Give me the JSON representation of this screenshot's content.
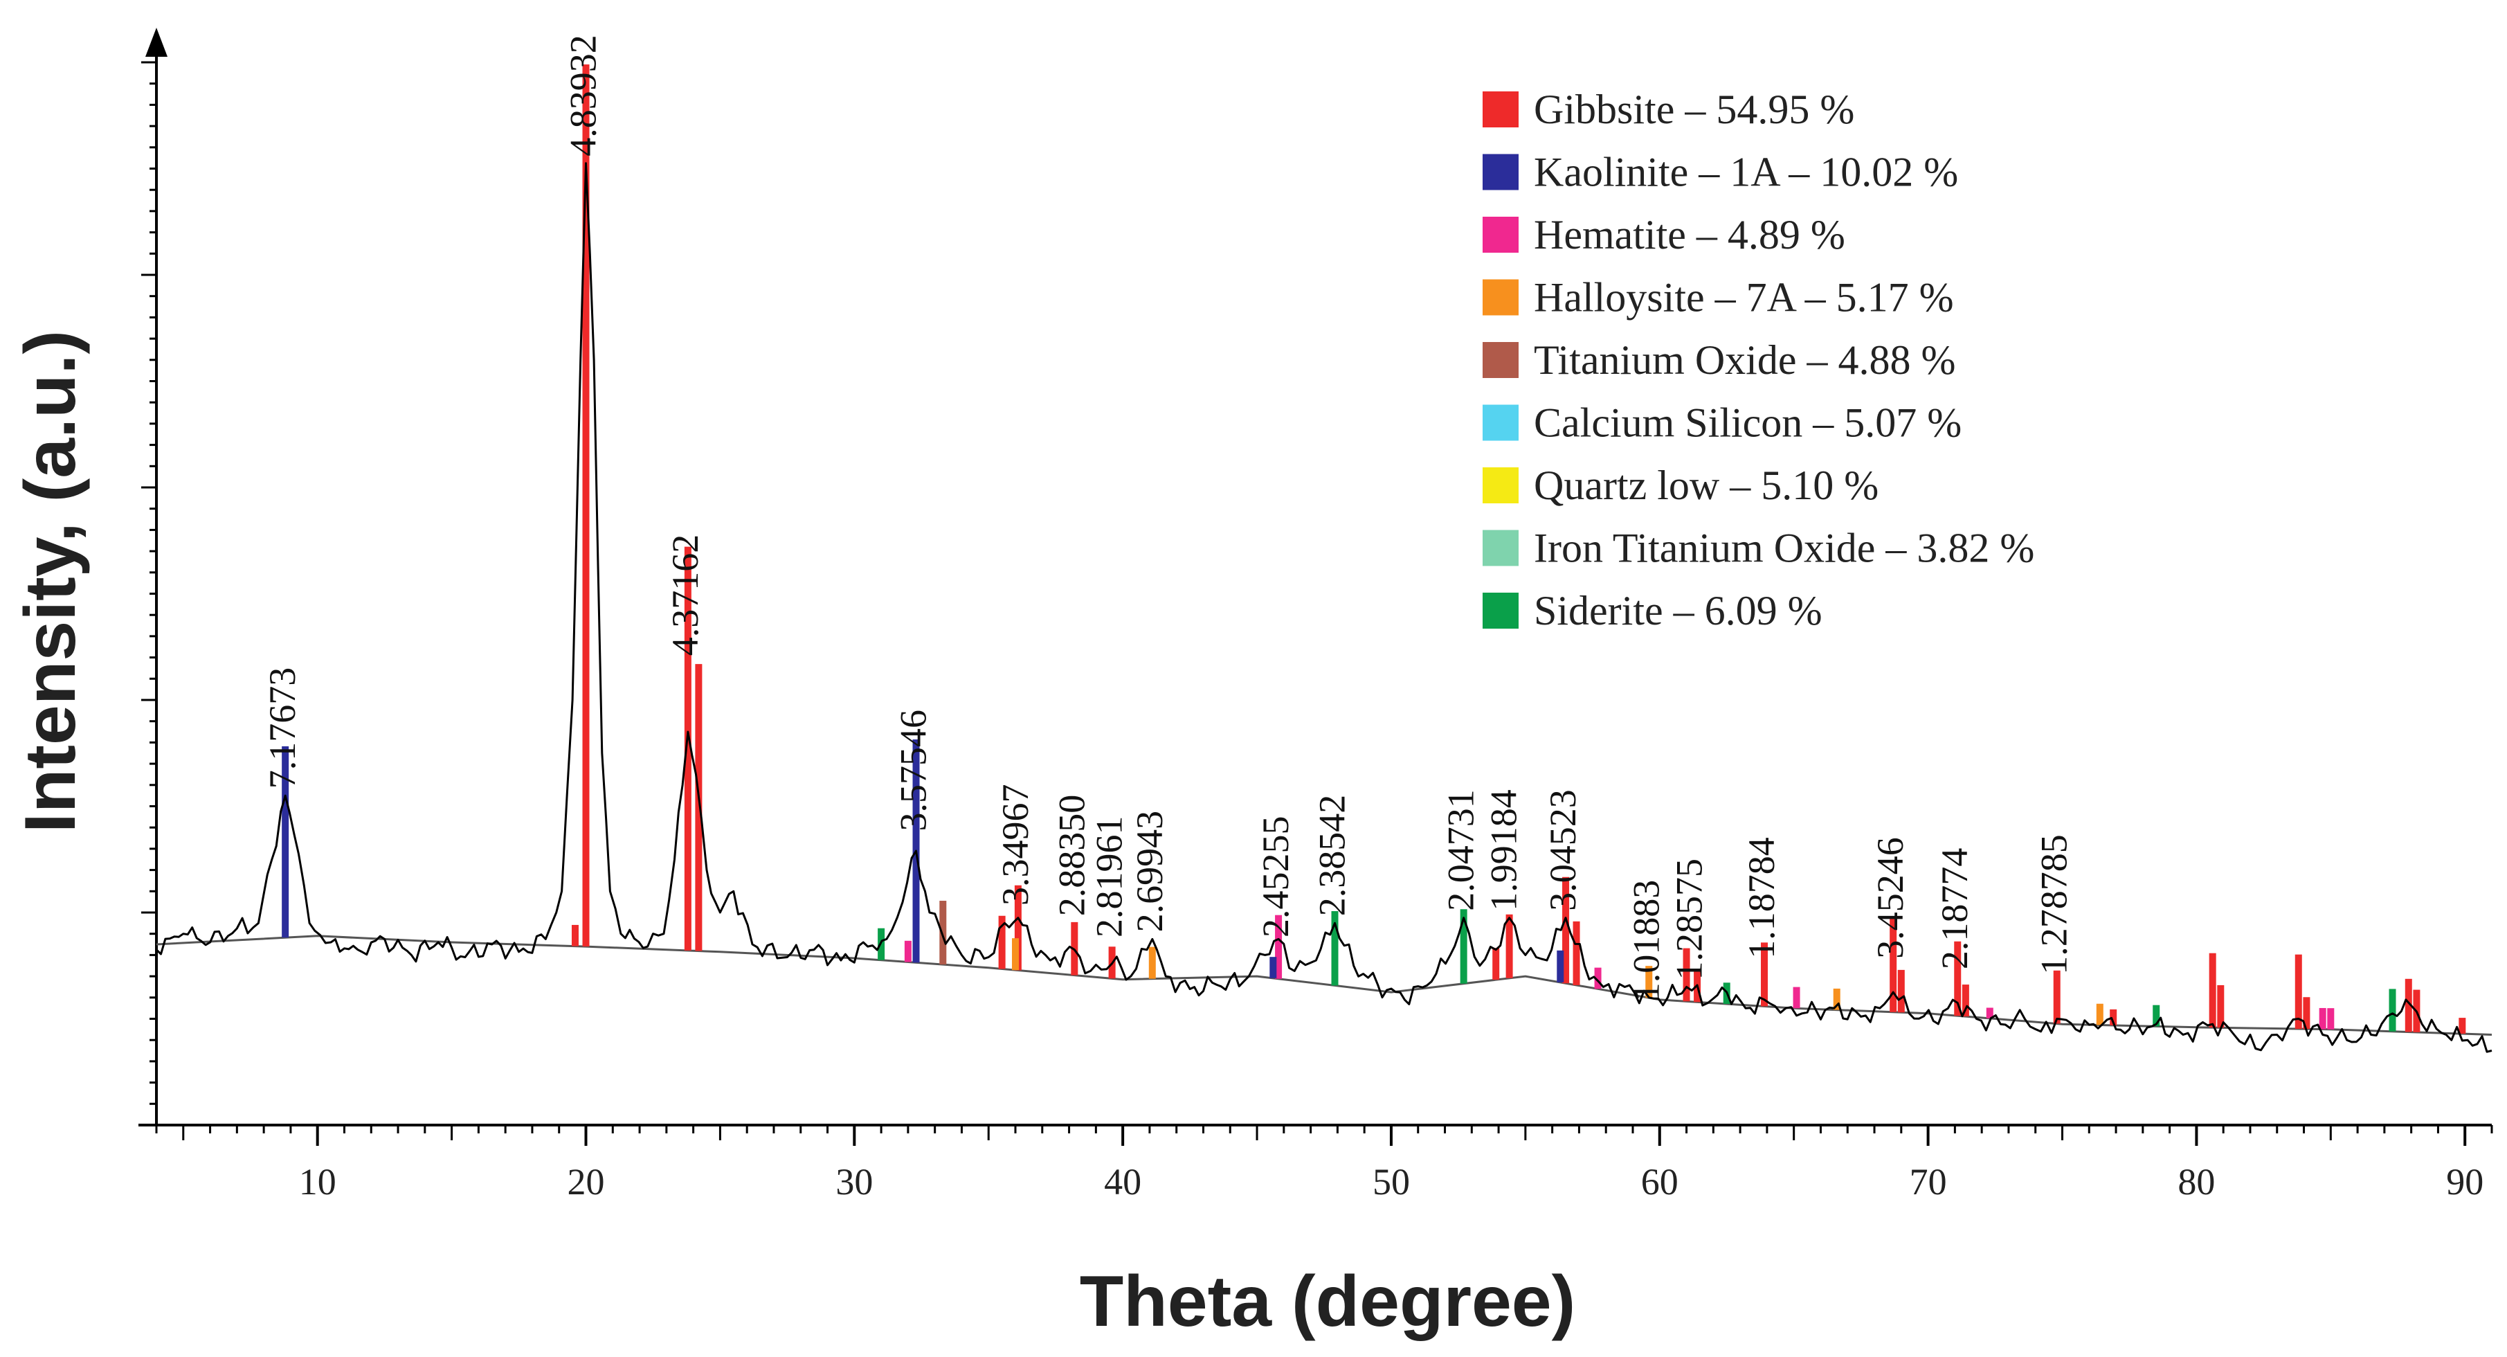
{
  "chart_data": {
    "type": "line",
    "title": "",
    "xlabel": "Theta (degree)",
    "ylabel": "Intensity, (a.u.)",
    "xlim": [
      4,
      91
    ],
    "ylim": [
      0,
      1
    ],
    "y_tick_labels": false,
    "x_ticks": [
      10,
      20,
      30,
      40,
      50,
      60,
      70,
      80,
      90
    ],
    "x_tick_labels": [
      "10",
      "20",
      "30",
      "40",
      "50",
      "60",
      "70",
      "80",
      "90"
    ],
    "legend_position": "top-right",
    "legend": [
      {
        "label": "Gibbsite – 54.95 %",
        "color": "#ee2a2a"
      },
      {
        "label": "Kaolinite – 1A – 10.02 %",
        "color": "#2b2d9a"
      },
      {
        "label": "Hematite – 4.89 %",
        "color": "#f0288f"
      },
      {
        "label": "Halloysite – 7A – 5.17 %",
        "color": "#f7901e"
      },
      {
        "label": "Titanium Oxide – 4.88 %",
        "color": "#b05a4a"
      },
      {
        "label": "Calcium Silicon – 5.07 %",
        "color": "#55d3f0"
      },
      {
        "label": "Quartz low – 5.10 %",
        "color": "#f5ea14"
      },
      {
        "label": "Iron Titanium Oxide – 3.82 %",
        "color": "#7fd3ad"
      },
      {
        "label": "Siderite – 6.09 %",
        "color": "#0aa04a"
      }
    ],
    "peak_annotations": [
      {
        "label": "7.17673",
        "x": 8.8,
        "y": 0.31
      },
      {
        "label": "4.83932",
        "x": 20.0,
        "y": 0.905
      },
      {
        "label": "4.37162",
        "x": 23.8,
        "y": 0.435
      },
      {
        "label": "3.57546",
        "x": 32.3,
        "y": 0.27
      },
      {
        "label": "3.34967",
        "x": 36.1,
        "y": 0.2
      },
      {
        "label": "2.88350",
        "x": 38.2,
        "y": 0.19
      },
      {
        "label": "2.81961",
        "x": 39.6,
        "y": 0.17
      },
      {
        "label": "2.69943",
        "x": 41.1,
        "y": 0.175
      },
      {
        "label": "2.45255",
        "x": 45.8,
        "y": 0.17
      },
      {
        "label": "2.38542",
        "x": 47.9,
        "y": 0.19
      },
      {
        "label": "2.04731",
        "x": 52.7,
        "y": 0.195
      },
      {
        "label": "1.99184",
        "x": 54.3,
        "y": 0.195
      },
      {
        "label": "3.04523",
        "x": 56.5,
        "y": 0.195
      },
      {
        "label": "1.01883",
        "x": 59.6,
        "y": 0.11
      },
      {
        "label": "1.28575",
        "x": 61.2,
        "y": 0.13
      },
      {
        "label": "1.18784",
        "x": 63.9,
        "y": 0.15
      },
      {
        "label": "3.45246",
        "x": 68.7,
        "y": 0.15
      },
      {
        "label": "2.18774",
        "x": 71.1,
        "y": 0.14
      },
      {
        "label": "1.278785",
        "x": 74.8,
        "y": 0.135
      }
    ],
    "phase_sticks": [
      {
        "x": 8.8,
        "h": 0.18,
        "phase": 1
      },
      {
        "x": 20.0,
        "h": 0.83,
        "phase": 0
      },
      {
        "x": 19.6,
        "h": 0.02,
        "phase": 0
      },
      {
        "x": 23.8,
        "h": 0.38,
        "phase": 0
      },
      {
        "x": 24.2,
        "h": 0.27,
        "phase": 0
      },
      {
        "x": 32.3,
        "h": 0.21,
        "phase": 1
      },
      {
        "x": 31.0,
        "h": 0.03,
        "phase": 8
      },
      {
        "x": 32.0,
        "h": 0.02,
        "phase": 2
      },
      {
        "x": 33.3,
        "h": 0.06,
        "phase": 4
      },
      {
        "x": 35.5,
        "h": 0.05,
        "phase": 0
      },
      {
        "x": 36.1,
        "h": 0.08,
        "phase": 0
      },
      {
        "x": 36.0,
        "h": 0.03,
        "phase": 3
      },
      {
        "x": 38.2,
        "h": 0.05,
        "phase": 0
      },
      {
        "x": 39.6,
        "h": 0.03,
        "phase": 0
      },
      {
        "x": 41.1,
        "h": 0.03,
        "phase": 3
      },
      {
        "x": 45.8,
        "h": 0.06,
        "phase": 2
      },
      {
        "x": 45.6,
        "h": 0.02,
        "phase": 1
      },
      {
        "x": 47.9,
        "h": 0.07,
        "phase": 8
      },
      {
        "x": 52.7,
        "h": 0.07,
        "phase": 8
      },
      {
        "x": 54.4,
        "h": 0.06,
        "phase": 0
      },
      {
        "x": 53.9,
        "h": 0.03,
        "phase": 0
      },
      {
        "x": 56.5,
        "h": 0.1,
        "phase": 0
      },
      {
        "x": 56.9,
        "h": 0.06,
        "phase": 0
      },
      {
        "x": 56.3,
        "h": 0.03,
        "phase": 1
      },
      {
        "x": 57.7,
        "h": 0.02,
        "phase": 2
      },
      {
        "x": 59.6,
        "h": 0.03,
        "phase": 3
      },
      {
        "x": 61.0,
        "h": 0.05,
        "phase": 0
      },
      {
        "x": 61.4,
        "h": 0.03,
        "phase": 0
      },
      {
        "x": 62.5,
        "h": 0.02,
        "phase": 8
      },
      {
        "x": 63.9,
        "h": 0.06,
        "phase": 0
      },
      {
        "x": 65.1,
        "h": 0.02,
        "phase": 2
      },
      {
        "x": 66.6,
        "h": 0.02,
        "phase": 3
      },
      {
        "x": 68.7,
        "h": 0.09,
        "phase": 0
      },
      {
        "x": 69.0,
        "h": 0.04,
        "phase": 0
      },
      {
        "x": 71.1,
        "h": 0.07,
        "phase": 0
      },
      {
        "x": 71.4,
        "h": 0.03,
        "phase": 0
      },
      {
        "x": 72.3,
        "h": 0.01,
        "phase": 2
      },
      {
        "x": 74.8,
        "h": 0.05,
        "phase": 0
      },
      {
        "x": 76.4,
        "h": 0.02,
        "phase": 3
      },
      {
        "x": 76.9,
        "h": 0.015,
        "phase": 0
      },
      {
        "x": 78.5,
        "h": 0.02,
        "phase": 8
      },
      {
        "x": 80.6,
        "h": 0.07,
        "phase": 0
      },
      {
        "x": 80.9,
        "h": 0.04,
        "phase": 0
      },
      {
        "x": 83.8,
        "h": 0.07,
        "phase": 0
      },
      {
        "x": 84.1,
        "h": 0.03,
        "phase": 0
      },
      {
        "x": 84.7,
        "h": 0.02,
        "phase": 2
      },
      {
        "x": 85.0,
        "h": 0.02,
        "phase": 2
      },
      {
        "x": 87.3,
        "h": 0.04,
        "phase": 8
      },
      {
        "x": 87.9,
        "h": 0.05,
        "phase": 0
      },
      {
        "x": 88.2,
        "h": 0.04,
        "phase": 0
      },
      {
        "x": 89.9,
        "h": 0.015,
        "phase": 0
      }
    ],
    "baseline": [
      [
        4,
        0.17
      ],
      [
        10,
        0.178
      ],
      [
        15,
        0.172
      ],
      [
        20,
        0.168
      ],
      [
        25,
        0.163
      ],
      [
        30,
        0.157
      ],
      [
        35,
        0.148
      ],
      [
        40,
        0.137
      ],
      [
        45,
        0.14
      ],
      [
        50,
        0.125
      ],
      [
        55,
        0.14
      ],
      [
        60,
        0.118
      ],
      [
        65,
        0.11
      ],
      [
        70,
        0.105
      ],
      [
        75,
        0.095
      ],
      [
        80,
        0.092
      ],
      [
        85,
        0.09
      ],
      [
        91,
        0.085
      ]
    ],
    "series": [
      {
        "name": "XRD pattern",
        "color": "#000000",
        "points": [
          [
            4,
            0.165
          ],
          [
            5,
            0.18
          ],
          [
            6,
            0.172
          ],
          [
            7,
            0.185
          ],
          [
            7.8,
            0.19
          ],
          [
            8.3,
            0.25
          ],
          [
            8.8,
            0.31
          ],
          [
            9.3,
            0.255
          ],
          [
            9.7,
            0.19
          ],
          [
            10.5,
            0.172
          ],
          [
            11.5,
            0.165
          ],
          [
            12.5,
            0.175
          ],
          [
            13.5,
            0.16
          ],
          [
            14.5,
            0.172
          ],
          [
            15.5,
            0.158
          ],
          [
            16.5,
            0.17
          ],
          [
            17.5,
            0.163
          ],
          [
            18.5,
            0.175
          ],
          [
            19.1,
            0.22
          ],
          [
            19.5,
            0.4
          ],
          [
            19.8,
            0.72
          ],
          [
            20.0,
            0.905
          ],
          [
            20.3,
            0.72
          ],
          [
            20.6,
            0.35
          ],
          [
            20.9,
            0.22
          ],
          [
            21.3,
            0.18
          ],
          [
            22.3,
            0.168
          ],
          [
            22.9,
            0.18
          ],
          [
            23.3,
            0.25
          ],
          [
            23.6,
            0.32
          ],
          [
            23.8,
            0.37
          ],
          [
            24.1,
            0.33
          ],
          [
            24.5,
            0.24
          ],
          [
            25.0,
            0.2
          ],
          [
            25.5,
            0.22
          ],
          [
            26.2,
            0.17
          ],
          [
            27.5,
            0.158
          ],
          [
            28.5,
            0.165
          ],
          [
            29.5,
            0.155
          ],
          [
            30.5,
            0.168
          ],
          [
            31.2,
            0.175
          ],
          [
            31.8,
            0.21
          ],
          [
            32.3,
            0.258
          ],
          [
            32.8,
            0.2
          ],
          [
            33.2,
            0.185
          ],
          [
            34.0,
            0.16
          ],
          [
            35.0,
            0.158
          ],
          [
            35.6,
            0.19
          ],
          [
            36.1,
            0.195
          ],
          [
            36.6,
            0.17
          ],
          [
            37.3,
            0.155
          ],
          [
            38.2,
            0.165
          ],
          [
            38.8,
            0.145
          ],
          [
            39.6,
            0.152
          ],
          [
            40.3,
            0.14
          ],
          [
            41.1,
            0.175
          ],
          [
            41.6,
            0.14
          ],
          [
            42.5,
            0.128
          ],
          [
            43.5,
            0.132
          ],
          [
            44.5,
            0.135
          ],
          [
            45.3,
            0.16
          ],
          [
            45.8,
            0.175
          ],
          [
            46.4,
            0.145
          ],
          [
            47.2,
            0.155
          ],
          [
            47.9,
            0.19
          ],
          [
            48.6,
            0.15
          ],
          [
            49.5,
            0.132
          ],
          [
            50.5,
            0.118
          ],
          [
            51.5,
            0.135
          ],
          [
            52.2,
            0.16
          ],
          [
            52.7,
            0.195
          ],
          [
            53.3,
            0.15
          ],
          [
            53.9,
            0.165
          ],
          [
            54.4,
            0.195
          ],
          [
            55.0,
            0.16
          ],
          [
            55.8,
            0.155
          ],
          [
            56.5,
            0.195
          ],
          [
            57.2,
            0.15
          ],
          [
            57.9,
            0.13
          ],
          [
            58.7,
            0.13
          ],
          [
            59.6,
            0.12
          ],
          [
            60.3,
            0.12
          ],
          [
            61.0,
            0.13
          ],
          [
            61.8,
            0.115
          ],
          [
            62.5,
            0.125
          ],
          [
            63.2,
            0.11
          ],
          [
            63.9,
            0.118
          ],
          [
            64.7,
            0.11
          ],
          [
            65.5,
            0.106
          ],
          [
            66.5,
            0.11
          ],
          [
            67.5,
            0.102
          ],
          [
            68.2,
            0.11
          ],
          [
            68.7,
            0.125
          ],
          [
            69.3,
            0.105
          ],
          [
            70.2,
            0.098
          ],
          [
            71.1,
            0.115
          ],
          [
            71.8,
            0.1
          ],
          [
            72.7,
            0.095
          ],
          [
            73.6,
            0.1
          ],
          [
            74.2,
            0.088
          ],
          [
            74.8,
            0.1
          ],
          [
            75.5,
            0.09
          ],
          [
            76.5,
            0.095
          ],
          [
            77.5,
            0.09
          ],
          [
            78.5,
            0.095
          ],
          [
            79.5,
            0.085
          ],
          [
            80.6,
            0.095
          ],
          [
            81.4,
            0.085
          ],
          [
            82.2,
            0.072
          ],
          [
            83.0,
            0.085
          ],
          [
            83.8,
            0.1
          ],
          [
            84.7,
            0.085
          ],
          [
            85.6,
            0.08
          ],
          [
            86.5,
            0.085
          ],
          [
            87.3,
            0.105
          ],
          [
            87.8,
            0.118
          ],
          [
            88.4,
            0.095
          ],
          [
            89.3,
            0.085
          ],
          [
            90.1,
            0.08
          ],
          [
            91,
            0.07
          ]
        ]
      }
    ]
  }
}
